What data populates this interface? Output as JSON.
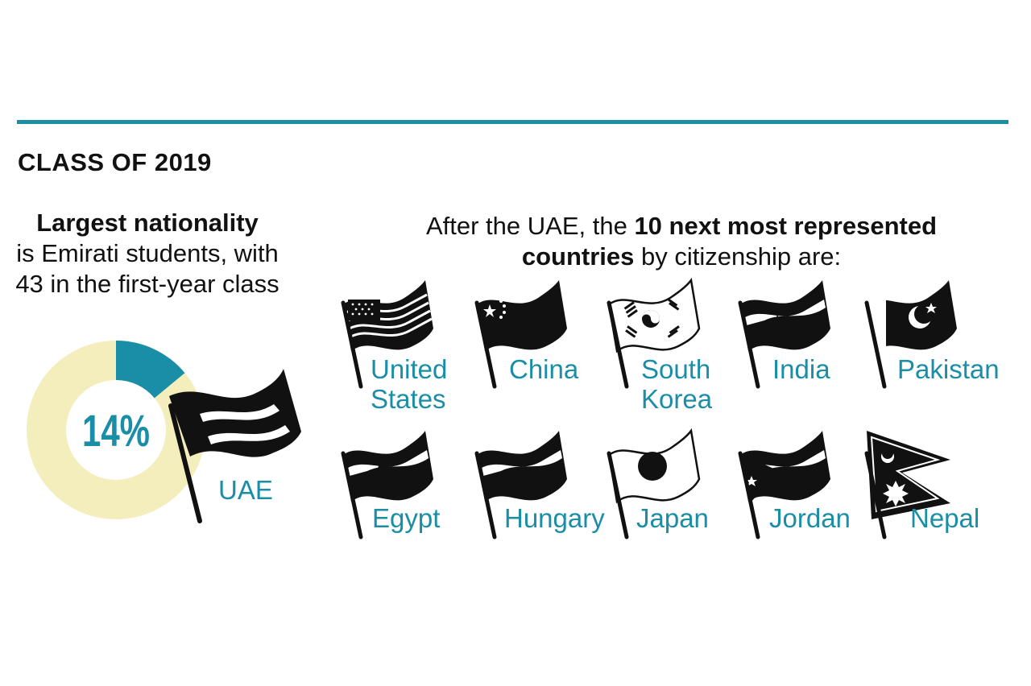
{
  "heading": "CLASS OF 2019",
  "left_text": {
    "bold": "Largest nationality",
    "rest": "is Emirati students, with 43 in the first-year class"
  },
  "intro": {
    "pre": "After the UAE, the ",
    "bold1": "10 next most represented",
    "bold2": "countries",
    "post": " by citizenship are:"
  },
  "colors": {
    "accent": "#1a8ea6",
    "donut_rest": "#f3eebb",
    "flag_black": "#111111"
  },
  "chart_data": {
    "type": "pie",
    "variant": "donut",
    "center_label": "14%",
    "slices": [
      {
        "label": "UAE",
        "value": 14,
        "color": "#1a8ea6"
      },
      {
        "value": 86,
        "color": "#f3eebb"
      }
    ]
  },
  "uae": {
    "label": "UAE",
    "flag_icon": "uae-flag-icon"
  },
  "countries": [
    {
      "name": "United\nStates",
      "flag_icon": "usa-flag-icon"
    },
    {
      "name": "China",
      "flag_icon": "china-flag-icon"
    },
    {
      "name": "South\nKorea",
      "flag_icon": "south-korea-flag-icon"
    },
    {
      "name": "India",
      "flag_icon": "india-flag-icon"
    },
    {
      "name": "Pakistan",
      "flag_icon": "pakistan-flag-icon"
    },
    {
      "name": "Egypt",
      "flag_icon": "egypt-flag-icon"
    },
    {
      "name": "Hungary",
      "flag_icon": "hungary-flag-icon"
    },
    {
      "name": "Japan",
      "flag_icon": "japan-flag-icon"
    },
    {
      "name": "Jordan",
      "flag_icon": "jordan-flag-icon"
    },
    {
      "name": "Nepal",
      "flag_icon": "nepal-flag-icon"
    }
  ]
}
